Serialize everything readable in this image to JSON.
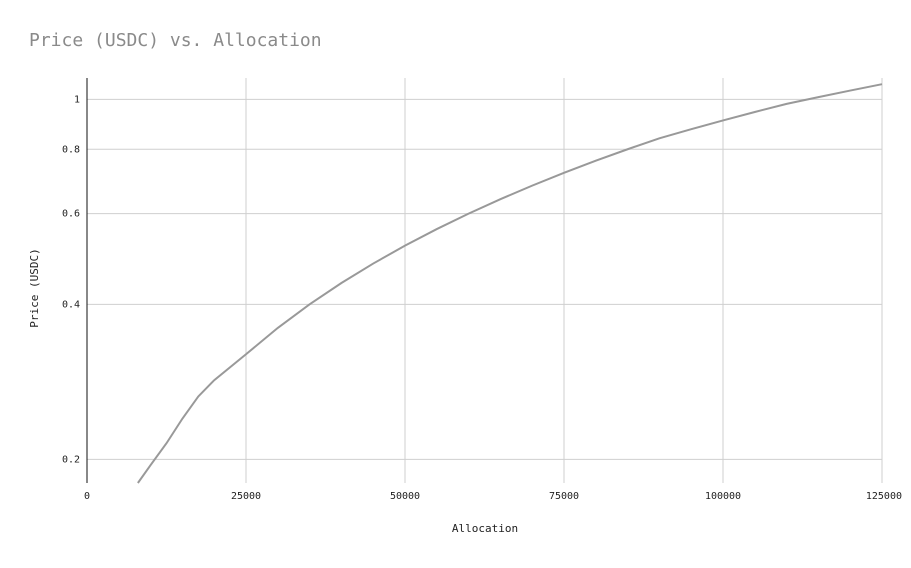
{
  "chart_data": {
    "type": "line",
    "title": "Price (USDC) vs. Allocation",
    "xlabel": "Allocation",
    "ylabel": "Price (USDC)",
    "x_scale": "linear",
    "y_scale": "log",
    "xlim": [
      0,
      125000
    ],
    "ylim": [
      0.18,
      1.1
    ],
    "x_ticks": [
      0,
      25000,
      50000,
      75000,
      100000,
      125000
    ],
    "y_ticks": [
      0.2,
      0.4,
      0.6,
      0.8,
      1
    ],
    "grid": true,
    "legend": "none",
    "colors": {
      "line": "#999999",
      "grid": "#cfcfcf",
      "axis": "#111111",
      "title": "#8a8a8a"
    },
    "series": [
      {
        "x": [
          8000,
          10000,
          12500,
          15000,
          17500,
          20000,
          25000,
          30000,
          35000,
          40000,
          45000,
          50000,
          55000,
          60000,
          65000,
          70000,
          75000,
          80000,
          85000,
          90000,
          95000,
          100000,
          105000,
          110000,
          115000,
          120000,
          125000
        ],
        "y": [
          0.18,
          0.195,
          0.215,
          0.24,
          0.265,
          0.285,
          0.32,
          0.36,
          0.4,
          0.44,
          0.48,
          0.52,
          0.56,
          0.6,
          0.64,
          0.68,
          0.72,
          0.76,
          0.8,
          0.84,
          0.875,
          0.91,
          0.945,
          0.98,
          1.01,
          1.04,
          1.07
        ]
      }
    ]
  }
}
